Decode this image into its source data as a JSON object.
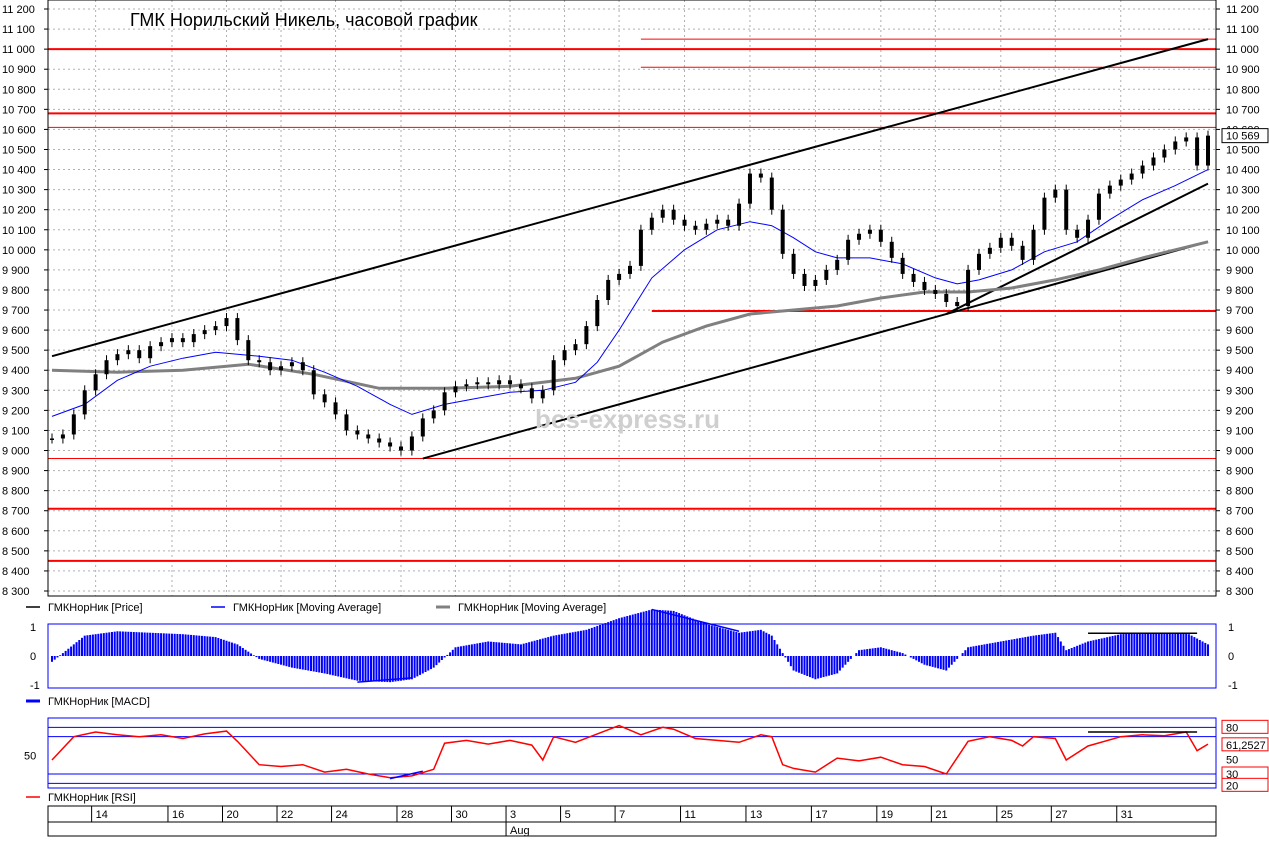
{
  "chart_data": {
    "type": "line",
    "title": "ГМК Норильский Никель, часовой график",
    "watermark": "bcs-express.ru",
    "price_panel": {
      "y_ticks": [
        "8 300",
        "8 400",
        "8 500",
        "8 600",
        "8 700",
        "8 800",
        "8 900",
        "9 000",
        "9 100",
        "9 200",
        "9 300",
        "9 400",
        "9 500",
        "9 600",
        "9 700",
        "9 800",
        "9 900",
        "10 000",
        "10 100",
        "10 200",
        "10 300",
        "10 400",
        "10 500",
        "10 600",
        "10 700",
        "10 800",
        "10 900",
        "11 000",
        "11 100",
        "11 200"
      ],
      "ylim": [
        8300,
        11200
      ],
      "last_price_label": "10 569",
      "last_price": 10569,
      "legend": [
        {
          "name": "ГМКНорНик [Price]",
          "color": "#000000"
        },
        {
          "name": "ГМКНорНик [Moving Average]",
          "color": "#0000ff"
        },
        {
          "name": "ГМКНорНик [Moving Average]",
          "color": "#808080"
        }
      ],
      "horizontal_levels": [
        11050,
        11000,
        10910,
        10680,
        10610,
        9695,
        8960,
        8710,
        8450
      ],
      "price_series": [
        [
          0,
          9060
        ],
        [
          1,
          9080
        ],
        [
          2,
          9180
        ],
        [
          3,
          9300
        ],
        [
          4,
          9380
        ],
        [
          5,
          9450
        ],
        [
          6,
          9480
        ],
        [
          7,
          9500
        ],
        [
          8,
          9460
        ],
        [
          9,
          9520
        ],
        [
          10,
          9540
        ],
        [
          11,
          9560
        ],
        [
          12,
          9540
        ],
        [
          13,
          9580
        ],
        [
          14,
          9600
        ],
        [
          15,
          9620
        ],
        [
          16,
          9660
        ],
        [
          17,
          9550
        ],
        [
          18,
          9450
        ],
        [
          19,
          9440
        ],
        [
          20,
          9400
        ],
        [
          21,
          9420
        ],
        [
          22,
          9440
        ],
        [
          23,
          9400
        ],
        [
          24,
          9280
        ],
        [
          25,
          9240
        ],
        [
          26,
          9180
        ],
        [
          27,
          9100
        ],
        [
          28,
          9080
        ],
        [
          29,
          9060
        ],
        [
          30,
          9040
        ],
        [
          31,
          9020
        ],
        [
          32,
          9000
        ],
        [
          33,
          9070
        ],
        [
          34,
          9160
        ],
        [
          35,
          9200
        ],
        [
          36,
          9290
        ],
        [
          37,
          9320
        ],
        [
          38,
          9330
        ],
        [
          39,
          9340
        ],
        [
          40,
          9330
        ],
        [
          41,
          9350
        ],
        [
          42,
          9330
        ],
        [
          43,
          9310
        ],
        [
          44,
          9260
        ],
        [
          45,
          9300
        ],
        [
          46,
          9450
        ],
        [
          47,
          9500
        ],
        [
          48,
          9530
        ],
        [
          49,
          9620
        ],
        [
          50,
          9750
        ],
        [
          51,
          9850
        ],
        [
          52,
          9880
        ],
        [
          53,
          9920
        ],
        [
          54,
          10100
        ],
        [
          55,
          10160
        ],
        [
          56,
          10200
        ],
        [
          57,
          10150
        ],
        [
          58,
          10120
        ],
        [
          59,
          10100
        ],
        [
          60,
          10130
        ],
        [
          61,
          10150
        ],
        [
          62,
          10120
        ],
        [
          63,
          10230
        ],
        [
          64,
          10380
        ],
        [
          65,
          10360
        ],
        [
          66,
          10200
        ],
        [
          67,
          9980
        ],
        [
          68,
          9880
        ],
        [
          69,
          9820
        ],
        [
          70,
          9850
        ],
        [
          71,
          9900
        ],
        [
          72,
          9950
        ],
        [
          73,
          10050
        ],
        [
          74,
          10080
        ],
        [
          75,
          10100
        ],
        [
          76,
          10040
        ],
        [
          77,
          9960
        ],
        [
          78,
          9880
        ],
        [
          79,
          9840
        ],
        [
          80,
          9800
        ],
        [
          81,
          9780
        ],
        [
          82,
          9740
        ],
        [
          83,
          9720
        ],
        [
          84,
          9900
        ],
        [
          85,
          9980
        ],
        [
          86,
          10010
        ],
        [
          87,
          10060
        ],
        [
          88,
          10020
        ],
        [
          89,
          9950
        ],
        [
          90,
          10100
        ],
        [
          91,
          10260
        ],
        [
          92,
          10300
        ],
        [
          93,
          10100
        ],
        [
          94,
          10060
        ],
        [
          95,
          10150
        ],
        [
          96,
          10280
        ],
        [
          97,
          10320
        ],
        [
          98,
          10350
        ],
        [
          99,
          10380
        ],
        [
          100,
          10420
        ],
        [
          101,
          10460
        ],
        [
          102,
          10500
        ],
        [
          103,
          10540
        ],
        [
          104,
          10560
        ],
        [
          105,
          10420
        ],
        [
          106,
          10569
        ]
      ],
      "ma_fast_series": [
        [
          0,
          9170
        ],
        [
          3,
          9230
        ],
        [
          6,
          9350
        ],
        [
          9,
          9420
        ],
        [
          12,
          9460
        ],
        [
          15,
          9490
        ],
        [
          17,
          9480
        ],
        [
          19,
          9470
        ],
        [
          22,
          9450
        ],
        [
          25,
          9390
        ],
        [
          28,
          9320
        ],
        [
          31,
          9230
        ],
        [
          33,
          9180
        ],
        [
          36,
          9230
        ],
        [
          39,
          9260
        ],
        [
          42,
          9290
        ],
        [
          45,
          9300
        ],
        [
          48,
          9340
        ],
        [
          50,
          9440
        ],
        [
          52,
          9600
        ],
        [
          55,
          9860
        ],
        [
          58,
          10000
        ],
        [
          61,
          10100
        ],
        [
          64,
          10140
        ],
        [
          66,
          10120
        ],
        [
          68,
          10060
        ],
        [
          70,
          9990
        ],
        [
          72,
          9960
        ],
        [
          75,
          9960
        ],
        [
          78,
          9930
        ],
        [
          81,
          9860
        ],
        [
          83,
          9830
        ],
        [
          85,
          9850
        ],
        [
          88,
          9900
        ],
        [
          91,
          9990
        ],
        [
          94,
          10040
        ],
        [
          97,
          10150
        ],
        [
          100,
          10250
        ],
        [
          103,
          10320
        ],
        [
          106,
          10400
        ]
      ],
      "ma_slow_series": [
        [
          0,
          9400
        ],
        [
          6,
          9390
        ],
        [
          12,
          9400
        ],
        [
          18,
          9430
        ],
        [
          24,
          9380
        ],
        [
          30,
          9310
        ],
        [
          36,
          9310
        ],
        [
          42,
          9320
        ],
        [
          48,
          9360
        ],
        [
          52,
          9420
        ],
        [
          56,
          9540
        ],
        [
          60,
          9620
        ],
        [
          64,
          9680
        ],
        [
          68,
          9700
        ],
        [
          72,
          9720
        ],
        [
          76,
          9760
        ],
        [
          80,
          9790
        ],
        [
          84,
          9790
        ],
        [
          88,
          9810
        ],
        [
          92,
          9850
        ],
        [
          96,
          9900
        ],
        [
          100,
          9960
        ],
        [
          103,
          10000
        ],
        [
          106,
          10040
        ]
      ],
      "trendlines": [
        {
          "from": [
            0,
            9470
          ],
          "to": [
            106,
            11050
          ]
        },
        {
          "from": [
            34,
            8960
          ],
          "to": [
            106,
            10040
          ]
        },
        {
          "from": [
            82,
            9680
          ],
          "to": [
            106,
            10330
          ]
        }
      ]
    },
    "macd_panel": {
      "legend": "ГМКНорНик [MACD]",
      "y_ticks": [
        "-1",
        "0",
        "1"
      ],
      "ylim": [
        -1.1,
        1.1
      ],
      "series": [
        [
          0,
          -0.2
        ],
        [
          3,
          0.7
        ],
        [
          6,
          0.85
        ],
        [
          9,
          0.8
        ],
        [
          12,
          0.75
        ],
        [
          15,
          0.65
        ],
        [
          17,
          0.4
        ],
        [
          19,
          -0.1
        ],
        [
          22,
          -0.4
        ],
        [
          25,
          -0.6
        ],
        [
          28,
          -0.85
        ],
        [
          31,
          -0.9
        ],
        [
          33,
          -0.8
        ],
        [
          35,
          -0.4
        ],
        [
          37,
          0.3
        ],
        [
          40,
          0.5
        ],
        [
          43,
          0.4
        ],
        [
          46,
          0.7
        ],
        [
          49,
          0.9
        ],
        [
          52,
          1.3
        ],
        [
          55,
          1.6
        ],
        [
          57,
          1.55
        ],
        [
          60,
          1.1
        ],
        [
          63,
          0.8
        ],
        [
          65,
          0.9
        ],
        [
          66,
          0.7
        ],
        [
          68,
          -0.5
        ],
        [
          70,
          -0.8
        ],
        [
          72,
          -0.6
        ],
        [
          74,
          0.2
        ],
        [
          76,
          0.3
        ],
        [
          78,
          0.1
        ],
        [
          80,
          -0.3
        ],
        [
          82,
          -0.5
        ],
        [
          84,
          0.3
        ],
        [
          87,
          0.5
        ],
        [
          90,
          0.7
        ],
        [
          92,
          0.8
        ],
        [
          93,
          0.2
        ],
        [
          95,
          0.5
        ],
        [
          98,
          0.75
        ],
        [
          101,
          0.8
        ],
        [
          104,
          0.8
        ],
        [
          106,
          0.4
        ]
      ]
    },
    "rsi_panel": {
      "legend": "ГМКНорНик [RSI]",
      "y_ticks": [
        "50"
      ],
      "right_labels": [
        "80",
        "61,2527",
        "50",
        "30",
        "20"
      ],
      "ylim": [
        15,
        90
      ],
      "levels": [
        80,
        70,
        30,
        20
      ],
      "last_value": 61.2527,
      "series": [
        [
          0,
          45
        ],
        [
          2,
          70
        ],
        [
          4,
          75
        ],
        [
          6,
          72
        ],
        [
          8,
          70
        ],
        [
          10,
          72
        ],
        [
          12,
          68
        ],
        [
          14,
          73
        ],
        [
          16,
          76
        ],
        [
          17,
          65
        ],
        [
          19,
          40
        ],
        [
          21,
          38
        ],
        [
          23,
          40
        ],
        [
          25,
          32
        ],
        [
          27,
          35
        ],
        [
          29,
          30
        ],
        [
          31,
          26
        ],
        [
          33,
          28
        ],
        [
          35,
          35
        ],
        [
          36,
          63
        ],
        [
          38,
          66
        ],
        [
          40,
          62
        ],
        [
          42,
          66
        ],
        [
          44,
          61
        ],
        [
          45,
          45
        ],
        [
          46,
          70
        ],
        [
          48,
          64
        ],
        [
          50,
          73
        ],
        [
          52,
          82
        ],
        [
          54,
          72
        ],
        [
          56,
          80
        ],
        [
          57,
          78
        ],
        [
          59,
          68
        ],
        [
          61,
          66
        ],
        [
          63,
          64
        ],
        [
          65,
          72
        ],
        [
          66,
          70
        ],
        [
          67,
          40
        ],
        [
          68,
          36
        ],
        [
          70,
          32
        ],
        [
          72,
          47
        ],
        [
          74,
          44
        ],
        [
          76,
          48
        ],
        [
          78,
          40
        ],
        [
          80,
          38
        ],
        [
          82,
          30
        ],
        [
          84,
          65
        ],
        [
          86,
          70
        ],
        [
          88,
          66
        ],
        [
          89,
          60
        ],
        [
          90,
          70
        ],
        [
          92,
          68
        ],
        [
          93,
          45
        ],
        [
          95,
          60
        ],
        [
          98,
          70
        ],
        [
          100,
          72
        ],
        [
          102,
          71
        ],
        [
          104,
          75
        ],
        [
          105,
          55
        ],
        [
          106,
          62
        ]
      ]
    },
    "x_axis": {
      "tick_labels": [
        "14",
        "16",
        "20",
        "22",
        "24",
        "28",
        "30",
        "3",
        "5",
        "7",
        "11",
        "13",
        "17",
        "19",
        "21",
        "25",
        "27",
        "31"
      ],
      "month_label": "Aug"
    },
    "colors": {
      "price": "#000000",
      "ma_fast": "#0000ff",
      "ma_slow": "#808080",
      "levels": "#ff0000",
      "trendline": "#000000",
      "macd": "#0000ff",
      "rsi": "#ff0000",
      "rsi_bands": "#0000ff",
      "grid": "#b0b0b0",
      "panel_border": "#0000ff"
    }
  }
}
